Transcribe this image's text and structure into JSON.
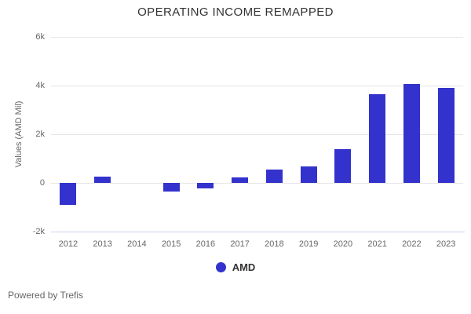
{
  "page": {
    "footer": "Powered by Trefis"
  },
  "chart_data": {
    "type": "bar",
    "title": "OPERATING INCOME REMAPPED",
    "xlabel": "",
    "ylabel": "Values (AMD Mil)",
    "categories": [
      "2012",
      "2013",
      "2014",
      "2015",
      "2016",
      "2017",
      "2018",
      "2019",
      "2020",
      "2021",
      "2022",
      "2023"
    ],
    "series": [
      {
        "name": "AMD",
        "color": "#3432cc",
        "values": [
          -900,
          270,
          0,
          -360,
          -220,
          240,
          540,
          680,
          1400,
          3660,
          4080,
          3910
        ]
      }
    ],
    "ylim": [
      -2000,
      6000
    ],
    "yticks": [
      {
        "value": 6000,
        "label": "6k"
      },
      {
        "value": 4000,
        "label": "4k"
      },
      {
        "value": 2000,
        "label": "2k"
      },
      {
        "value": 0,
        "label": "0"
      },
      {
        "value": -2000,
        "label": "-2k"
      }
    ],
    "grid": true,
    "legend_position": "bottom",
    "colors": {
      "grid": "#e6e6e6",
      "axis_line": "#ccd6eb",
      "title": "#333333",
      "tick_label": "#666666",
      "legend_text": "#333333"
    }
  }
}
